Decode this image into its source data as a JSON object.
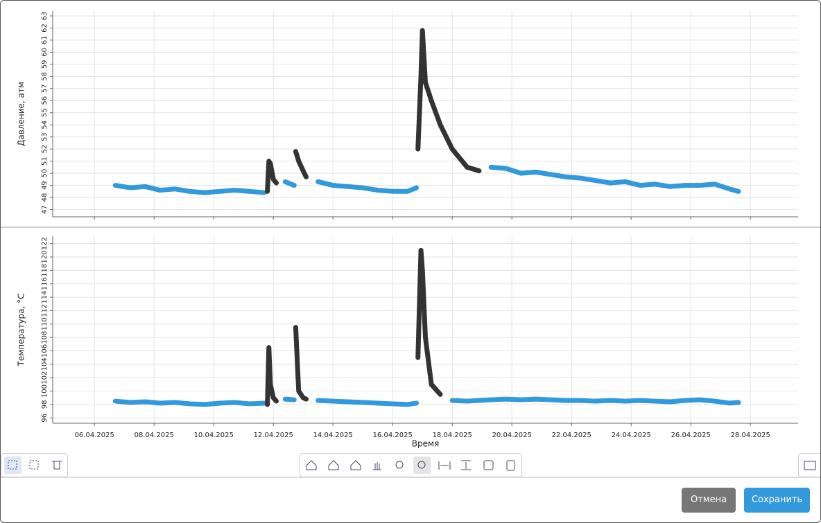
{
  "chart_data": [
    {
      "type": "line",
      "y_label": "Давление, атм",
      "x": [
        6.7,
        7.2,
        7.7,
        8.2,
        8.7,
        9.2,
        9.7,
        10.2,
        10.7,
        11.2,
        11.7,
        11.8,
        11.85,
        11.9,
        12.0,
        12.1,
        12.4,
        12.7,
        12.75,
        12.85,
        13.0,
        13.1,
        13.5,
        14.0,
        14.5,
        15.0,
        15.5,
        16.0,
        16.5,
        16.8,
        16.85,
        16.95,
        17.0,
        17.1,
        17.3,
        17.6,
        18.0,
        18.5,
        18.9,
        19.3,
        19.8,
        20.3,
        20.8,
        21.3,
        21.8,
        22.3,
        22.8,
        23.3,
        23.8,
        24.3,
        24.8,
        25.3,
        25.8,
        26.3,
        26.8,
        27.3,
        27.6
      ],
      "series": [
        {
          "color": "#3399dd",
          "values": [
            49.0,
            48.8,
            48.9,
            48.6,
            48.7,
            48.5,
            48.4,
            48.5,
            48.6,
            48.5,
            48.4,
            null,
            null,
            null,
            null,
            null,
            49.3,
            49.0,
            null,
            null,
            null,
            null,
            49.3,
            49.0,
            48.9,
            48.8,
            48.6,
            48.5,
            48.5,
            48.8,
            null,
            null,
            null,
            null,
            null,
            null,
            null,
            null,
            null,
            50.5,
            50.4,
            50.0,
            50.1,
            49.9,
            49.7,
            49.6,
            49.4,
            49.2,
            49.3,
            49.0,
            49.1,
            48.9,
            49.0,
            49.0,
            49.1,
            48.7,
            48.5
          ]
        },
        {
          "color": "#333333",
          "values": [
            null,
            null,
            null,
            null,
            null,
            null,
            null,
            null,
            null,
            null,
            null,
            48.5,
            51.0,
            50.8,
            49.5,
            49.2,
            null,
            null,
            51.8,
            51.0,
            50.2,
            49.7,
            null,
            null,
            null,
            null,
            null,
            null,
            null,
            null,
            52.0,
            58.0,
            61.8,
            57.5,
            56.0,
            54.0,
            52.0,
            50.5,
            50.2,
            null,
            null,
            null,
            null,
            null,
            null,
            null,
            null,
            null,
            null,
            null,
            null,
            null,
            null,
            null,
            null,
            null,
            null
          ]
        }
      ],
      "xlim": [
        4.6,
        29.6
      ],
      "xticks": [
        6,
        8,
        10,
        12,
        14,
        16,
        18,
        20,
        22,
        24,
        26,
        28
      ],
      "ylim": [
        46.4,
        63.4
      ],
      "yticks": [
        47,
        48,
        49,
        50,
        51,
        52,
        53,
        54,
        55,
        56,
        57,
        58,
        59,
        60,
        61,
        62,
        63
      ],
      "grid": true
    },
    {
      "type": "line",
      "y_label": "Температура, °С",
      "x_label": "Время",
      "x": [
        6.7,
        7.2,
        7.7,
        8.2,
        8.7,
        9.2,
        9.7,
        10.2,
        10.7,
        11.2,
        11.7,
        11.8,
        11.85,
        11.9,
        12.0,
        12.1,
        12.4,
        12.7,
        12.75,
        12.85,
        13.0,
        13.1,
        13.5,
        14.0,
        14.5,
        15.0,
        15.5,
        16.0,
        16.5,
        16.8,
        16.85,
        16.95,
        17.0,
        17.1,
        17.3,
        17.6,
        18.0,
        18.5,
        18.9,
        19.3,
        19.8,
        20.3,
        20.8,
        21.3,
        21.8,
        22.3,
        22.8,
        23.3,
        23.8,
        24.3,
        24.8,
        25.3,
        25.8,
        26.3,
        26.8,
        27.3,
        27.6
      ],
      "series": [
        {
          "color": "#3399dd",
          "values": [
            98.5,
            98.3,
            98.4,
            98.2,
            98.3,
            98.1,
            98.0,
            98.2,
            98.3,
            98.1,
            98.2,
            null,
            null,
            null,
            null,
            null,
            98.8,
            98.7,
            null,
            null,
            null,
            null,
            98.6,
            98.5,
            98.4,
            98.3,
            98.2,
            98.1,
            98.0,
            98.2,
            null,
            null,
            null,
            null,
            null,
            null,
            98.6,
            98.5,
            98.6,
            98.7,
            98.8,
            98.7,
            98.8,
            98.7,
            98.6,
            98.6,
            98.5,
            98.6,
            98.5,
            98.6,
            98.5,
            98.4,
            98.6,
            98.7,
            98.5,
            98.2,
            98.3
          ]
        },
        {
          "color": "#333333",
          "values": [
            null,
            null,
            null,
            null,
            null,
            null,
            null,
            null,
            null,
            null,
            null,
            98.0,
            106.5,
            101.0,
            99.0,
            98.5,
            null,
            null,
            109.5,
            100.0,
            99.0,
            98.8,
            null,
            null,
            null,
            null,
            null,
            null,
            null,
            null,
            105.0,
            121.0,
            118.0,
            108.0,
            101.0,
            99.5,
            null,
            null,
            null,
            null,
            null,
            null,
            null,
            null,
            null,
            null,
            null,
            null,
            null,
            null,
            null,
            null,
            null,
            null,
            null,
            null,
            null
          ]
        }
      ],
      "xlim": [
        4.6,
        29.6
      ],
      "xticks": [
        {
          "value": 6,
          "label": "06.04.2025"
        },
        {
          "value": 8,
          "label": "08.04.2025"
        },
        {
          "value": 10,
          "label": "10.04.2025"
        },
        {
          "value": 12,
          "label": "12.04.2025"
        },
        {
          "value": 14,
          "label": "14.04.2025"
        },
        {
          "value": 16,
          "label": "16.04.2025"
        },
        {
          "value": 18,
          "label": "18.04.2025"
        },
        {
          "value": 20,
          "label": "20.04.2025"
        },
        {
          "value": 22,
          "label": "22.04.2025"
        },
        {
          "value": 24,
          "label": "24.04.2025"
        },
        {
          "value": 26,
          "label": "26.04.2025"
        },
        {
          "value": 28,
          "label": "28.04.2025"
        }
      ],
      "ylim": [
        95.2,
        123.1
      ],
      "yticks": [
        96,
        98,
        100,
        102,
        104,
        106,
        108,
        110,
        112,
        114,
        116,
        118,
        120,
        122
      ],
      "grid": true
    }
  ],
  "buttons": {
    "cancel": "Отмена",
    "save": "Сохранить"
  }
}
